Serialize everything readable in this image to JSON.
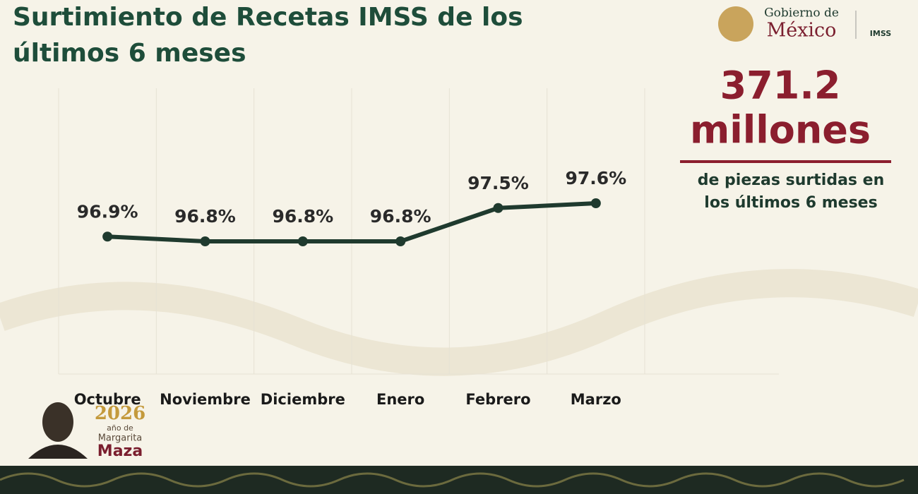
{
  "header": {
    "title_line1": "Surtimiento de Recetas IMSS de los",
    "title_line2": "últimos 6 meses",
    "logo_line1": "Gobierno de",
    "logo_line2": "México",
    "logo_imss": "IMSS"
  },
  "stat": {
    "value": 371.2,
    "unit": "millones",
    "caption_line1": "de piezas surtidas en",
    "caption_line2": "los últimos 6 meses"
  },
  "footer": {
    "year": "2026",
    "line1": "año de",
    "line2": "Margarita",
    "line3": "Maza"
  },
  "chart_data": {
    "type": "line",
    "categories": [
      "Octubre",
      "Noviembre",
      "Diciembre",
      "Enero",
      "Febrero",
      "Marzo"
    ],
    "values": [
      96.9,
      96.8,
      96.8,
      96.8,
      97.5,
      97.6
    ],
    "value_labels": [
      "96.9%",
      "96.8%",
      "96.8%",
      "96.8%",
      "97.5%",
      "97.6%"
    ],
    "color": "#1f3a2e"
  }
}
